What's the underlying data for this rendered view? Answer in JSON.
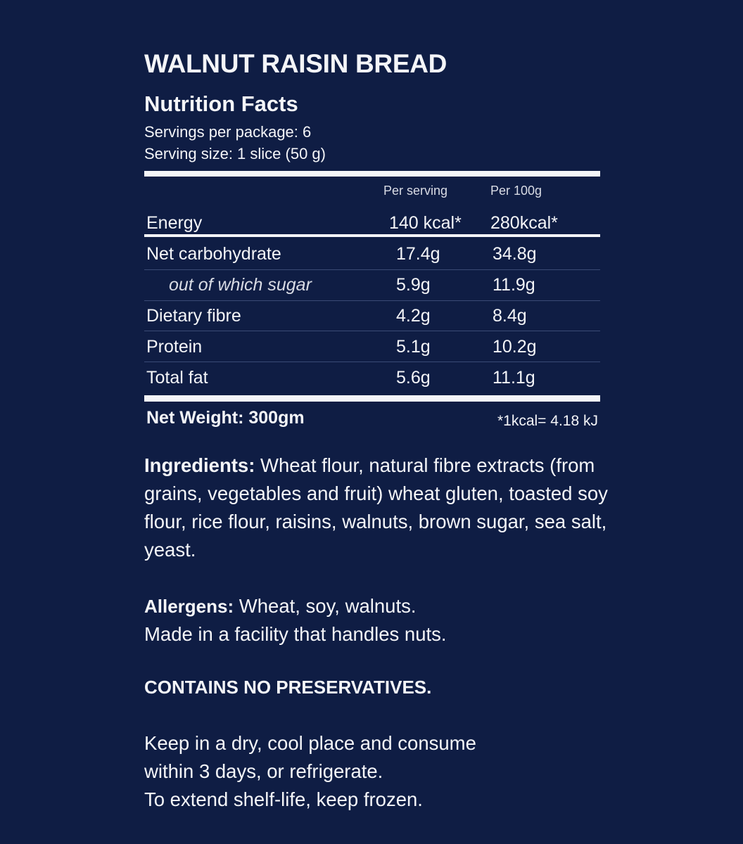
{
  "title": "WALNUT RAISIN BREAD",
  "nutrition_facts": {
    "heading": "Nutrition Facts",
    "servings_per_package": "Servings per package: 6",
    "serving_size": "Serving size: 1 slice (50 g)",
    "columns": [
      "Per serving",
      "Per 100g"
    ],
    "energy": {
      "label": "Energy",
      "per_serving": "140 kcal*",
      "per_100g": "280kcal*"
    },
    "rows": [
      {
        "label": "Net carbohydrate",
        "per_serving": "17.4g",
        "per_100g": "34.8g"
      },
      {
        "label": "out of which sugar",
        "per_serving": "5.9g",
        "per_100g": "11.9g"
      },
      {
        "label": "Dietary fibre",
        "per_serving": "4.2g",
        "per_100g": "8.4g"
      },
      {
        "label": "Protein",
        "per_serving": "5.1g",
        "per_100g": "10.2g"
      },
      {
        "label": "Total fat",
        "per_serving": "5.6g",
        "per_100g": "11.1g"
      }
    ],
    "net_weight": "Net Weight: 300gm",
    "footnote": "*1kcal= 4.18 kJ"
  },
  "ingredients": {
    "label": "Ingredients:",
    "text": " Wheat flour, natural fibre extracts (from grains, vegetables and fruit) wheat gluten, toasted soy flour, rice flour, raisins, walnuts, brown sugar, sea salt, yeast."
  },
  "allergens": {
    "label": "Allergens:",
    "text": " Wheat, soy, walnuts.",
    "facility": "Made in a facility that handles nuts."
  },
  "preservatives": "CONTAINS NO PRESERVATIVES.",
  "storage": [
    "Keep in a dry, cool place and consume",
    "within 3 days, or refrigerate.",
    "To extend shelf-life, keep frozen."
  ],
  "colors": {
    "background": "#0f1d44",
    "text": "#f4f5f8",
    "divider": "#3a4a75"
  }
}
